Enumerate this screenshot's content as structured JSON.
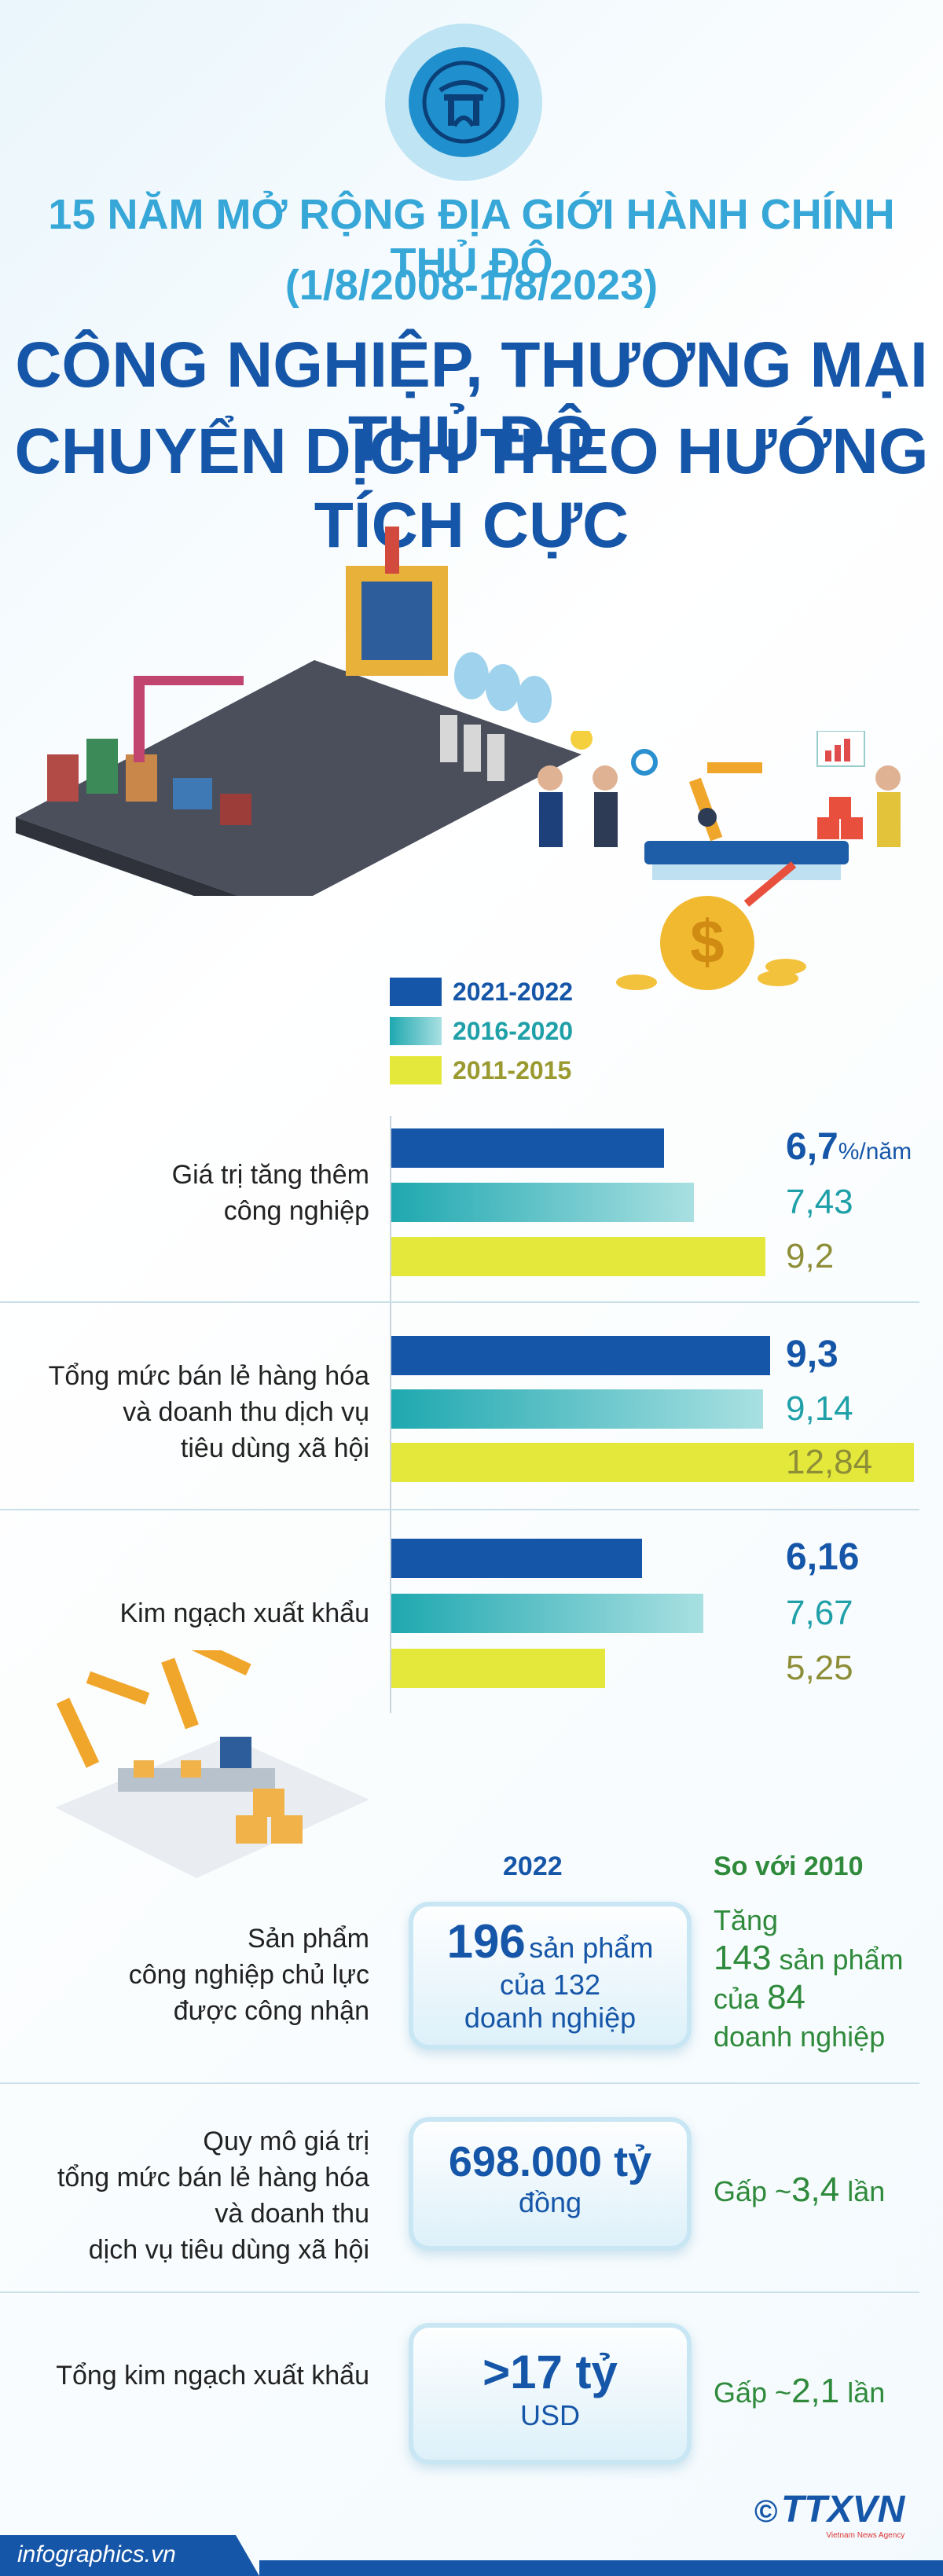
{
  "header": {
    "supertitle_1": "15 NĂM MỞ RỘNG ĐỊA GIỚI HÀNH CHÍNH THỦ ĐÔ",
    "supertitle_2": "(1/8/2008-1/8/2023)",
    "title_1": "CÔNG NGHIỆP, THƯƠNG MẠI THỦ ĐÔ",
    "title_2": "CHUYỂN DỊCH THEO HƯỚNG TÍCH CỰC"
  },
  "chart_data": {
    "type": "bar",
    "orientation": "horizontal",
    "legend": [
      {
        "label": "2021-2022",
        "color": "#1656a8"
      },
      {
        "label": "2016-2020",
        "color": "#2bb0b8"
      },
      {
        "label": "2011-2015",
        "color": "#e4e83a"
      }
    ],
    "groups": [
      {
        "category_1": "Giá trị tăng thêm",
        "category_2": "công nghiệp",
        "category_3": "",
        "values": [
          6.7,
          7.43,
          9.2
        ],
        "labels": [
          "6,7",
          "7,43",
          "9,2"
        ],
        "unit": "%/năm"
      },
      {
        "category_1": "Tổng mức bán lẻ hàng hóa",
        "category_2": "và doanh thu dịch vụ",
        "category_3": "tiêu dùng xã hội",
        "values": [
          9.3,
          9.14,
          12.84
        ],
        "labels": [
          "9,3",
          "9,14",
          "12,84"
        ],
        "unit": ""
      },
      {
        "category_1": "Kim ngạch xuất khẩu",
        "category_2": "",
        "category_3": "",
        "values": [
          6.16,
          7.67,
          5.25
        ],
        "labels": [
          "6,16",
          "7,67",
          "5,25"
        ],
        "unit": ""
      }
    ],
    "xmax": 12.84
  },
  "stats": {
    "col_2022": "2022",
    "col_2010": "So với 2010",
    "rows": [
      {
        "label_1": "Sản phẩm",
        "label_2": "công nghiệp chủ lực",
        "label_3": "được công nhận",
        "box_big": "196",
        "box_small": "sản phẩm",
        "box_line2": "của 132",
        "box_line3": "doanh nghiệp",
        "cmp_1": "Tăng",
        "cmp_2a": "143",
        "cmp_2b": "sản phẩm",
        "cmp_3a": "của",
        "cmp_3b": "84",
        "cmp_4": "doanh nghiệp"
      },
      {
        "label_1": "Quy mô giá trị",
        "label_2": "tổng mức bán lẻ hàng hóa",
        "label_3": "và doanh thu",
        "label_4": "dịch vụ tiêu dùng xã hội",
        "box_big": "698.000 tỷ",
        "box_small": "đồng",
        "cmp_a": "Gấp ~",
        "cmp_b": "3,4",
        "cmp_c": "lần"
      },
      {
        "label_1": "Tổng kim ngạch xuất khẩu",
        "box_big": ">17 tỷ",
        "box_small": "USD",
        "cmp_a": "Gấp ~",
        "cmp_b": "2,1",
        "cmp_c": "lần"
      }
    ]
  },
  "footer": {
    "site": "infographics.vn",
    "copyright": "©",
    "agency": "TTXVN",
    "agency_sub": "Vietnam News Agency"
  }
}
